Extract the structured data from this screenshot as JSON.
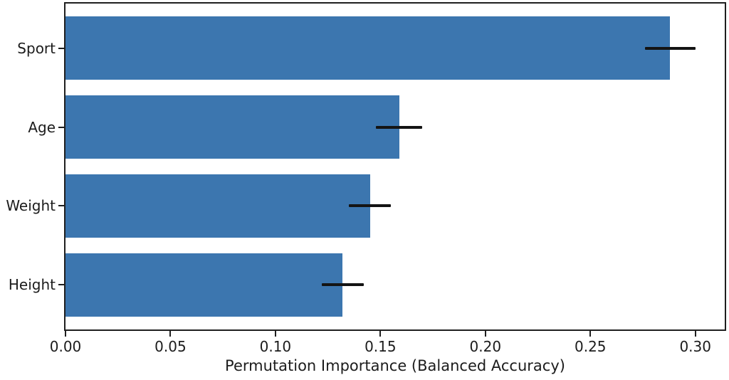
{
  "figure": {
    "background": "#ffffff"
  },
  "chart_data": {
    "type": "bar",
    "orientation": "horizontal",
    "title": "",
    "xlabel": "Permutation Importance (Balanced Accuracy)",
    "ylabel": "",
    "categories": [
      "Sport",
      "Age",
      "Weight",
      "Height"
    ],
    "values": [
      0.288,
      0.159,
      0.145,
      0.132
    ],
    "errors": [
      0.012,
      0.011,
      0.01,
      0.01
    ],
    "xlim": [
      0,
      0.314
    ],
    "xticks": [
      0,
      0.05,
      0.1,
      0.15,
      0.2,
      0.25,
      0.3
    ],
    "xtick_labels": [
      "0.00",
      "0.05",
      "0.10",
      "0.15",
      "0.20",
      "0.25",
      "0.30"
    ],
    "grid": false,
    "legend": null,
    "colors": {
      "bar": "#3c76af",
      "error_bar": "#141414",
      "spine": "#1f1f1f",
      "text": "#1c1c1c"
    }
  }
}
